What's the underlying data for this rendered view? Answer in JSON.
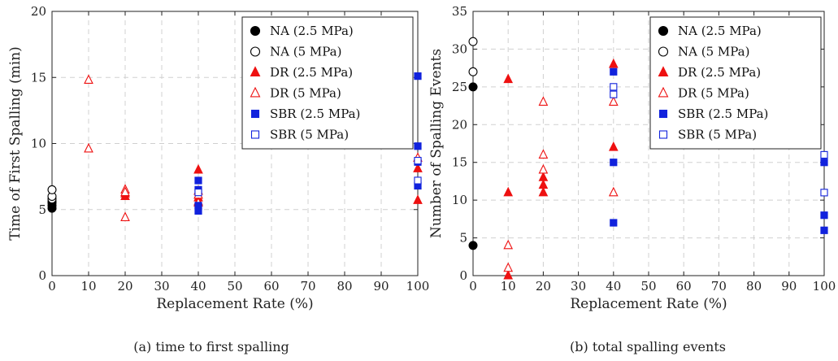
{
  "chart_data": [
    {
      "type": "scatter",
      "caption": "(a) time to first spalling",
      "xlabel": "Replacement Rate (%)",
      "ylabel": "Time of First Spalling (min)",
      "xlim": [
        0,
        100
      ],
      "ylim": [
        0,
        20
      ],
      "xticks": [
        0,
        10,
        20,
        30,
        40,
        50,
        60,
        70,
        80,
        90,
        100
      ],
      "yticks": [
        0,
        5,
        10,
        15,
        20
      ],
      "grid": true,
      "legend_position": "top-right",
      "series": [
        {
          "name": "NA (2.5 MPa)",
          "marker": "circle",
          "filled": true,
          "color": "#000000",
          "points": [
            [
              0,
              5.1
            ],
            [
              0,
              5.3
            ],
            [
              0,
              5.5
            ],
            [
              0,
              5.6
            ]
          ]
        },
        {
          "name": "NA (5 MPa)",
          "marker": "circle",
          "filled": false,
          "color": "#000000",
          "points": [
            [
              0,
              5.8
            ],
            [
              0,
              6.0
            ],
            [
              0,
              6.5
            ]
          ]
        },
        {
          "name": "DR (2.5 MPa)",
          "marker": "triangle",
          "filled": true,
          "color": "#ee1111",
          "points": [
            [
              20,
              6.0
            ],
            [
              20,
              6.2
            ],
            [
              40,
              5.6
            ],
            [
              40,
              5.9
            ],
            [
              40,
              6.4
            ],
            [
              40,
              8.0
            ],
            [
              100,
              5.7
            ],
            [
              100,
              8.1
            ]
          ]
        },
        {
          "name": "DR (5 MPa)",
          "marker": "triangle",
          "filled": false,
          "color": "#ee1111",
          "points": [
            [
              10,
              14.8
            ],
            [
              10,
              9.6
            ],
            [
              20,
              6.5
            ],
            [
              20,
              6.3
            ],
            [
              20,
              4.4
            ],
            [
              40,
              6.1
            ],
            [
              40,
              5.5
            ],
            [
              100,
              8.9
            ]
          ]
        },
        {
          "name": "SBR (2.5 MPa)",
          "marker": "square",
          "filled": true,
          "color": "#1122dd",
          "points": [
            [
              40,
              4.9
            ],
            [
              40,
              5.3
            ],
            [
              40,
              6.5
            ],
            [
              40,
              7.2
            ],
            [
              100,
              15.1
            ],
            [
              100,
              9.8
            ],
            [
              100,
              8.6
            ],
            [
              100,
              6.8
            ]
          ]
        },
        {
          "name": "SBR (5 MPa)",
          "marker": "square",
          "filled": false,
          "color": "#1122dd",
          "points": [
            [
              40,
              6.3
            ],
            [
              100,
              8.7
            ],
            [
              100,
              7.2
            ]
          ]
        }
      ]
    },
    {
      "type": "scatter",
      "caption": "(b) total spalling events",
      "xlabel": "Replacement Rate (%)",
      "ylabel": "Number of Spalling Events",
      "xlim": [
        0,
        100
      ],
      "ylim": [
        0,
        35
      ],
      "xticks": [
        0,
        10,
        20,
        30,
        40,
        50,
        60,
        70,
        80,
        90,
        100
      ],
      "yticks": [
        0,
        5,
        10,
        15,
        20,
        25,
        30,
        35
      ],
      "grid": true,
      "legend_position": "top-right",
      "series": [
        {
          "name": "NA (2.5 MPa)",
          "marker": "circle",
          "filled": true,
          "color": "#000000",
          "points": [
            [
              0,
              25
            ],
            [
              0,
              4
            ]
          ]
        },
        {
          "name": "NA (5 MPa)",
          "marker": "circle",
          "filled": false,
          "color": "#000000",
          "points": [
            [
              0,
              31
            ],
            [
              0,
              27
            ]
          ]
        },
        {
          "name": "DR (2.5 MPa)",
          "marker": "triangle",
          "filled": true,
          "color": "#ee1111",
          "points": [
            [
              10,
              26
            ],
            [
              10,
              11
            ],
            [
              10,
              0
            ],
            [
              20,
              13
            ],
            [
              20,
              12
            ],
            [
              20,
              11
            ],
            [
              40,
              28
            ],
            [
              40,
              17
            ]
          ]
        },
        {
          "name": "DR (5 MPa)",
          "marker": "triangle",
          "filled": false,
          "color": "#ee1111",
          "points": [
            [
              10,
              4
            ],
            [
              10,
              1
            ],
            [
              20,
              23
            ],
            [
              20,
              16
            ],
            [
              20,
              14
            ],
            [
              40,
              23
            ],
            [
              40,
              11
            ]
          ]
        },
        {
          "name": "SBR (2.5 MPa)",
          "marker": "square",
          "filled": true,
          "color": "#1122dd",
          "points": [
            [
              40,
              27
            ],
            [
              40,
              15
            ],
            [
              40,
              7
            ],
            [
              100,
              15
            ],
            [
              100,
              8
            ],
            [
              100,
              6
            ]
          ]
        },
        {
          "name": "SBR (5 MPa)",
          "marker": "square",
          "filled": false,
          "color": "#1122dd",
          "points": [
            [
              40,
              25
            ],
            [
              40,
              24
            ],
            [
              100,
              16
            ],
            [
              100,
              11
            ]
          ]
        }
      ]
    }
  ]
}
